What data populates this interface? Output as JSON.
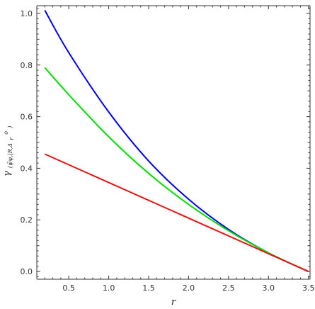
{
  "chart_data": {
    "type": "line",
    "title": "",
    "xlabel": "r",
    "ylabel": {
      "main": "γ",
      "sub": "(ψ̄ψ,|R,Δ",
      "sub2": "r",
      "sup": "o",
      "close": ")"
    },
    "xlim": [
      0.1,
      3.52
    ],
    "ylim": [
      -0.03,
      1.03
    ],
    "x_ticks": [
      0.5,
      1.0,
      1.5,
      2.0,
      2.5,
      3.0,
      3.5
    ],
    "x_tick_labels": [
      "0.5",
      "1.0",
      "1.5",
      "2.0",
      "2.5",
      "3.0",
      "3.5"
    ],
    "y_ticks": [
      0.0,
      0.2,
      0.4,
      0.6,
      0.8,
      1.0
    ],
    "y_tick_labels": [
      "0.0",
      "0.2",
      "0.4",
      "0.6",
      "0.8",
      "1.0"
    ],
    "grid": false,
    "legend": "none",
    "series": [
      {
        "color": "#0000ee",
        "x": [
          0.2,
          0.5,
          1.0,
          1.5,
          2.0,
          2.5,
          3.0,
          3.5
        ],
        "y": [
          1.012,
          0.848,
          0.618,
          0.428,
          0.28,
          0.163,
          0.072,
          0.0
        ]
      },
      {
        "color": "#00dd00",
        "x": [
          0.2,
          0.5,
          1.0,
          1.5,
          2.0,
          2.5,
          3.0,
          3.5
        ],
        "y": [
          0.79,
          0.685,
          0.522,
          0.38,
          0.26,
          0.158,
          0.072,
          0.0
        ]
      },
      {
        "color": "#ee1111",
        "x": [
          0.2,
          3.5
        ],
        "y": [
          0.455,
          0.0
        ]
      }
    ]
  }
}
